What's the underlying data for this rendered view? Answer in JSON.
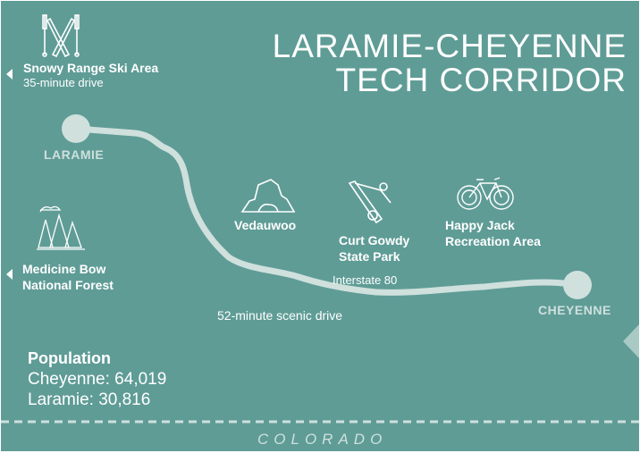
{
  "title": {
    "line1": "LARAMIE-CHEYENNE",
    "line2": "TECH CORRIDOR"
  },
  "colors": {
    "background": "#5f9c96",
    "road": "#cfe0dd",
    "text": "#ffffff"
  },
  "cities": {
    "laramie": "LARAMIE",
    "cheyenne": "CHEYENNE"
  },
  "destinations": {
    "snowy_range": {
      "name": "Snowy Range Ski Area",
      "detail": "35-minute drive",
      "icon": "skis-icon"
    },
    "medicine_bow": {
      "line1": "Medicine Bow",
      "line2": "National Forest",
      "icon": "forest-icon"
    },
    "vedauwoo": {
      "name": "Vedauwoo",
      "icon": "rock-formation-icon"
    },
    "curt_gowdy": {
      "line1": "Curt Gowdy",
      "line2": "State Park",
      "icon": "fishing-icon"
    },
    "happy_jack": {
      "line1": "Happy Jack",
      "line2": "Recreation Area",
      "icon": "bicycle-icon"
    }
  },
  "road": {
    "name": "Interstate 80",
    "scenic": "52-minute scenic drive"
  },
  "population": {
    "heading": "Population",
    "cheyenne": "Cheyenne: 64,019",
    "laramie": "Laramie: 30,816"
  },
  "border_state": "COLORADO"
}
